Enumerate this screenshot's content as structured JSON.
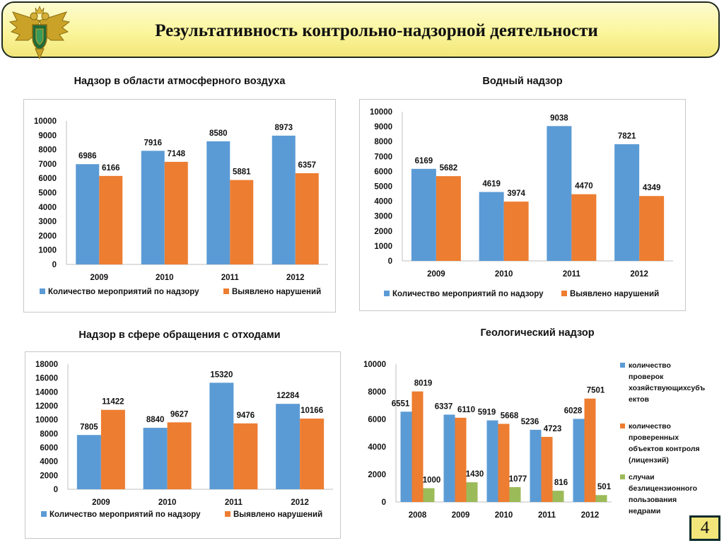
{
  "header": {
    "title": "Результативность контрольно-надзорной деятельности"
  },
  "page_number": "4",
  "colors": {
    "blue": "#5b9bd5",
    "orange": "#ed7d31",
    "green": "#9bbb59",
    "header_bg": "#fbf69c"
  },
  "icons": {
    "emblem": "double-headed-eagle-emblem-icon"
  },
  "chart_data": [
    {
      "type": "bar",
      "title": "Надзор в области атмосферного воздуха",
      "categories": [
        "2009",
        "2010",
        "2011",
        "2012"
      ],
      "series": [
        {
          "name": "Количество мероприятий по надзору",
          "values": [
            6986,
            7916,
            8580,
            8973
          ],
          "color": "#5b9bd5"
        },
        {
          "name": "Выявлено нарушений",
          "values": [
            6166,
            7148,
            5881,
            6357
          ],
          "color": "#ed7d31"
        }
      ],
      "ylim": [
        0,
        10000
      ],
      "yticks": [
        0,
        1000,
        2000,
        3000,
        4000,
        5000,
        6000,
        7000,
        8000,
        9000,
        10000
      ],
      "legend": "bottom",
      "grid": false
    },
    {
      "type": "bar",
      "title": "Водный надзор",
      "categories": [
        "2009",
        "2010",
        "2011",
        "2012"
      ],
      "series": [
        {
          "name": "Количество мероприятий по надзору",
          "values": [
            6169,
            4619,
            9038,
            7821
          ],
          "color": "#5b9bd5"
        },
        {
          "name": "Выявлено нарушений",
          "values": [
            5682,
            3974,
            4470,
            4349
          ],
          "color": "#ed7d31"
        }
      ],
      "ylim": [
        0,
        10000
      ],
      "yticks": [
        0,
        1000,
        2000,
        3000,
        4000,
        5000,
        6000,
        7000,
        8000,
        9000,
        10000
      ],
      "legend": "bottom",
      "grid": false
    },
    {
      "type": "bar",
      "title": "Надзор в сфере обращения с отходами",
      "categories": [
        "2009",
        "2010",
        "2011",
        "2012"
      ],
      "series": [
        {
          "name": "Количество мероприятий по надзору",
          "values": [
            7805,
            8840,
            15320,
            12284
          ],
          "color": "#5b9bd5"
        },
        {
          "name": "Выявлено нарушений",
          "values": [
            11422,
            9627,
            9476,
            10166
          ],
          "color": "#ed7d31"
        }
      ],
      "ylim": [
        0,
        18000
      ],
      "yticks": [
        0,
        2000,
        4000,
        6000,
        8000,
        10000,
        12000,
        14000,
        16000,
        18000
      ],
      "legend": "bottom",
      "grid": false
    },
    {
      "type": "bar",
      "title": "Геологический надзор",
      "categories": [
        "2008",
        "2009",
        "2010",
        "2011",
        "2012"
      ],
      "series": [
        {
          "name": "количество проверок хозяйствующихсубъ ектов",
          "values": [
            6551,
            6337,
            5919,
            5236,
            6028
          ],
          "color": "#5b9bd5"
        },
        {
          "name": "количество проверенных объектов контроля (лицензий)",
          "values": [
            8019,
            6110,
            5668,
            4723,
            7501
          ],
          "color": "#ed7d31"
        },
        {
          "name": "случаи безлицензионного пользования недрами",
          "values": [
            1000,
            1430,
            1077,
            816,
            501
          ],
          "color": "#9bbb59"
        }
      ],
      "ylim": [
        0,
        10000
      ],
      "yticks": [
        0,
        2000,
        4000,
        6000,
        8000,
        10000
      ],
      "legend": "right",
      "grid": false
    }
  ]
}
